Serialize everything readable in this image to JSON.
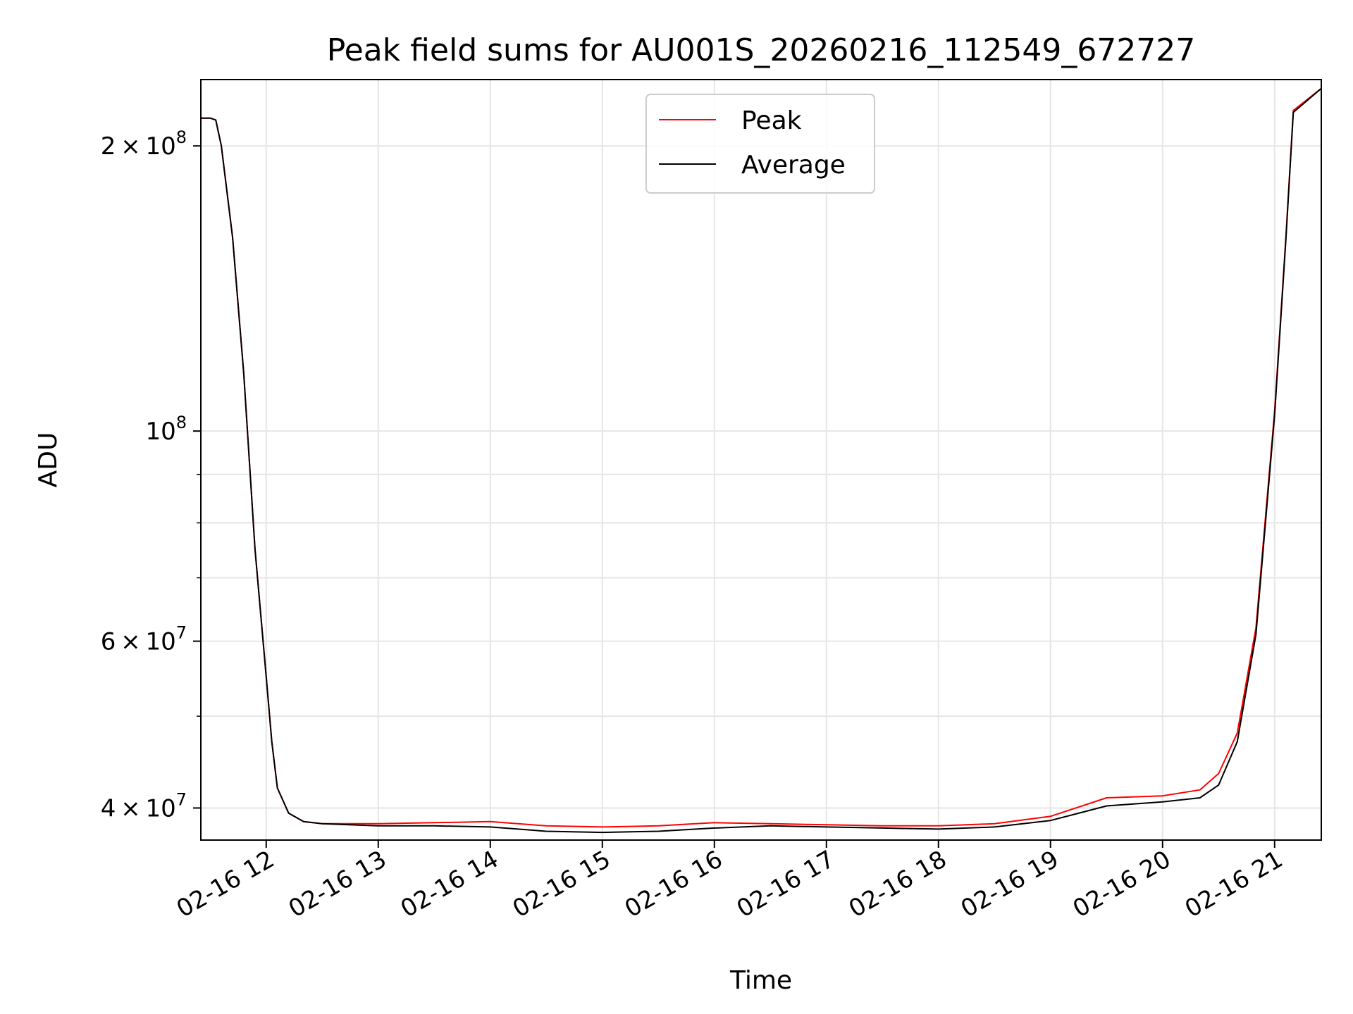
{
  "chart_data": {
    "type": "line",
    "title": "Peak field sums for AU001S_20260216_112549_672727",
    "xlabel": "Time",
    "ylabel": "ADU",
    "y_scale": "log",
    "ylim": [
      37000000,
      235000000
    ],
    "xlim": [
      "2026-02-16 11:25",
      "2026-02-16 21:25"
    ],
    "grid": true,
    "legend_position": "top-center",
    "x_tick_labels": [
      "02-16 12",
      "02-16 13",
      "02-16 14",
      "02-16 15",
      "02-16 16",
      "02-16 17",
      "02-16 18",
      "02-16 19",
      "02-16 20",
      "02-16 21"
    ],
    "x_ticks": [
      "2026-02-16 12:00",
      "2026-02-16 13:00",
      "2026-02-16 14:00",
      "2026-02-16 15:00",
      "2026-02-16 16:00",
      "2026-02-16 17:00",
      "2026-02-16 18:00",
      "2026-02-16 19:00",
      "2026-02-16 20:00",
      "2026-02-16 21:00"
    ],
    "y_ticks": [
      {
        "value": 40000000,
        "mantissa": "4",
        "exponent": "7"
      },
      {
        "value": 60000000,
        "mantissa": "6",
        "exponent": "7"
      },
      {
        "value": 100000000,
        "mantissa": "",
        "exponent": "8"
      },
      {
        "value": 200000000,
        "mantissa": "2",
        "exponent": "8"
      }
    ],
    "y_minor_ticks": [
      50000000,
      70000000,
      80000000,
      90000000
    ],
    "series": [
      {
        "name": "Peak",
        "color": "#ff0000",
        "x": [
          "2026-02-16 11:25",
          "2026-02-16 11:30",
          "2026-02-16 11:33",
          "2026-02-16 11:36",
          "2026-02-16 11:42",
          "2026-02-16 11:48",
          "2026-02-16 11:54",
          "2026-02-16 12:00",
          "2026-02-16 12:03",
          "2026-02-16 12:06",
          "2026-02-16 12:12",
          "2026-02-16 12:20",
          "2026-02-16 12:30",
          "2026-02-16 13:00",
          "2026-02-16 13:30",
          "2026-02-16 14:00",
          "2026-02-16 14:30",
          "2026-02-16 15:00",
          "2026-02-16 15:30",
          "2026-02-16 16:00",
          "2026-02-16 16:30",
          "2026-02-16 17:00",
          "2026-02-16 17:30",
          "2026-02-16 18:00",
          "2026-02-16 18:30",
          "2026-02-16 19:00",
          "2026-02-16 19:30",
          "2026-02-16 20:00",
          "2026-02-16 20:20",
          "2026-02-16 20:30",
          "2026-02-16 20:40",
          "2026-02-16 20:50",
          "2026-02-16 21:00",
          "2026-02-16 21:06",
          "2026-02-16 21:10",
          "2026-02-16 21:25"
        ],
        "values": [
          214000000,
          214000000,
          213000000,
          200000000,
          160000000,
          115000000,
          75000000,
          55000000,
          47000000,
          42000000,
          39500000,
          38700000,
          38500000,
          38500000,
          38600000,
          38700000,
          38300000,
          38200000,
          38300000,
          38600000,
          38500000,
          38400000,
          38300000,
          38300000,
          38500000,
          39200000,
          41000000,
          41200000,
          41800000,
          43500000,
          48000000,
          62000000,
          105000000,
          160000000,
          218000000,
          230000000
        ]
      },
      {
        "name": "Average",
        "color": "#000000",
        "x": [
          "2026-02-16 11:25",
          "2026-02-16 11:30",
          "2026-02-16 11:33",
          "2026-02-16 11:36",
          "2026-02-16 11:42",
          "2026-02-16 11:48",
          "2026-02-16 11:54",
          "2026-02-16 12:00",
          "2026-02-16 12:03",
          "2026-02-16 12:06",
          "2026-02-16 12:12",
          "2026-02-16 12:20",
          "2026-02-16 12:30",
          "2026-02-16 13:00",
          "2026-02-16 13:30",
          "2026-02-16 14:00",
          "2026-02-16 14:30",
          "2026-02-16 15:00",
          "2026-02-16 15:30",
          "2026-02-16 16:00",
          "2026-02-16 16:30",
          "2026-02-16 17:00",
          "2026-02-16 17:30",
          "2026-02-16 18:00",
          "2026-02-16 18:30",
          "2026-02-16 19:00",
          "2026-02-16 19:30",
          "2026-02-16 20:00",
          "2026-02-16 20:20",
          "2026-02-16 20:30",
          "2026-02-16 20:40",
          "2026-02-16 20:50",
          "2026-02-16 21:00",
          "2026-02-16 21:06",
          "2026-02-16 21:10",
          "2026-02-16 21:25"
        ],
        "values": [
          214000000,
          214000000,
          213000000,
          200000000,
          160000000,
          115000000,
          75000000,
          55000000,
          47000000,
          42000000,
          39500000,
          38700000,
          38500000,
          38300000,
          38300000,
          38200000,
          37800000,
          37700000,
          37800000,
          38100000,
          38300000,
          38200000,
          38100000,
          38000000,
          38200000,
          38800000,
          40200000,
          40600000,
          41000000,
          42300000,
          47000000,
          61000000,
          104000000,
          159000000,
          217000000,
          230000000
        ]
      }
    ]
  }
}
